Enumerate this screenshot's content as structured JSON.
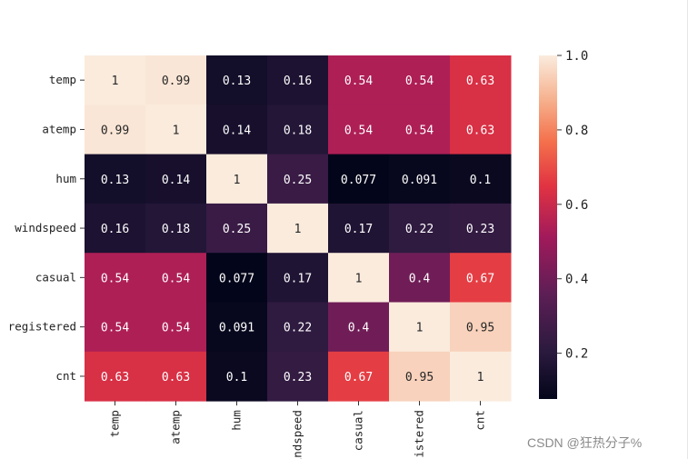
{
  "chart_data": {
    "type": "heatmap",
    "title": "",
    "xlabel": "",
    "ylabel": "",
    "row_labels": [
      "temp",
      "atemp",
      "hum",
      "windspeed",
      "casual",
      "registered",
      "cnt"
    ],
    "col_labels": [
      "temp",
      "atemp",
      "hum",
      "windspeed",
      "casual",
      "registered",
      "cnt"
    ],
    "values": [
      [
        1,
        0.99,
        0.13,
        0.16,
        0.54,
        0.54,
        0.63
      ],
      [
        0.99,
        1,
        0.14,
        0.18,
        0.54,
        0.54,
        0.63
      ],
      [
        0.13,
        0.14,
        1,
        0.25,
        0.077,
        0.091,
        0.1
      ],
      [
        0.16,
        0.18,
        0.25,
        1,
        0.17,
        0.22,
        0.23
      ],
      [
        0.54,
        0.54,
        0.077,
        0.17,
        1,
        0.4,
        0.67
      ],
      [
        0.54,
        0.54,
        0.091,
        0.22,
        0.4,
        1,
        0.95
      ],
      [
        0.63,
        0.63,
        0.1,
        0.23,
        0.67,
        0.95,
        1
      ]
    ],
    "value_labels": [
      [
        "1",
        "0.99",
        "0.13",
        "0.16",
        "0.54",
        "0.54",
        "0.63"
      ],
      [
        "0.99",
        "1",
        "0.14",
        "0.18",
        "0.54",
        "0.54",
        "0.63"
      ],
      [
        "0.13",
        "0.14",
        "1",
        "0.25",
        "0.077",
        "0.091",
        "0.1"
      ],
      [
        "0.16",
        "0.18",
        "0.25",
        "1",
        "0.17",
        "0.22",
        "0.23"
      ],
      [
        "0.54",
        "0.54",
        "0.077",
        "0.17",
        "1",
        "0.4",
        "0.67"
      ],
      [
        "0.54",
        "0.54",
        "0.091",
        "0.22",
        "0.4",
        "1",
        "0.95"
      ],
      [
        "0.63",
        "0.63",
        "0.1",
        "0.23",
        "0.67",
        "0.95",
        "1"
      ]
    ],
    "colorbar": {
      "colormap": "rocket",
      "vmin": 0.077,
      "vmax": 1.0,
      "ticks": [
        0.2,
        0.4,
        0.6,
        0.8,
        1.0
      ],
      "tick_labels": [
        "0.2",
        "0.4",
        "0.6",
        "0.8",
        "1.0"
      ]
    },
    "grid": false
  },
  "watermark": "CSDN @狂热分子%"
}
